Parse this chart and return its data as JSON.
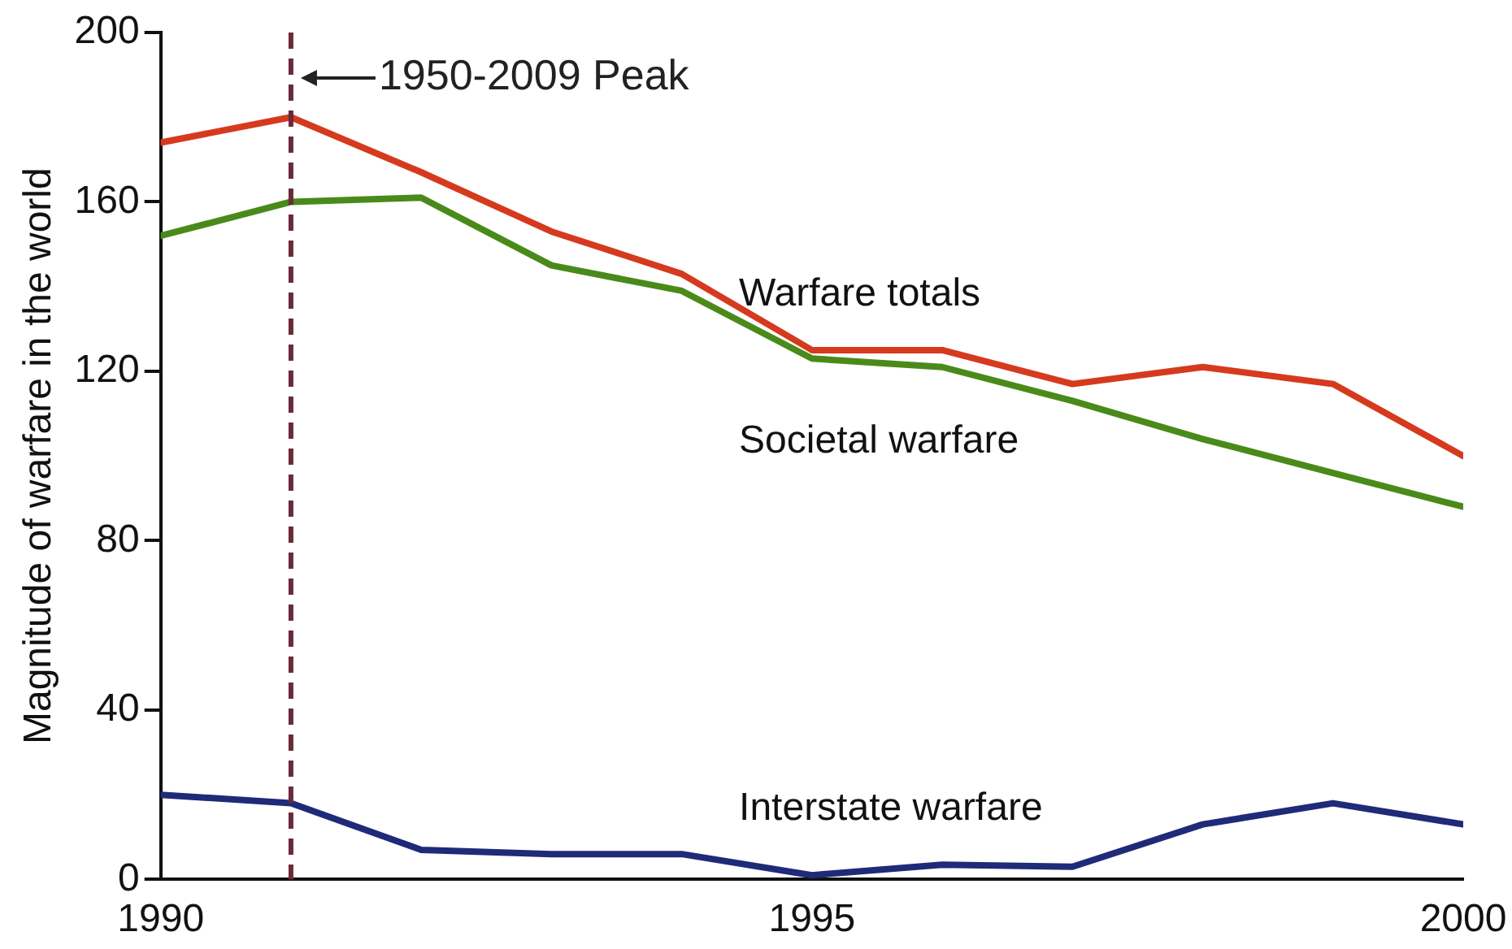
{
  "chart_data": {
    "type": "line",
    "ylabel": "Magnitude of warfare in the world",
    "x": [
      1990,
      1991,
      1992,
      1993,
      1994,
      1995,
      1996,
      1997,
      1998,
      1999,
      2000
    ],
    "series": [
      {
        "name": "Warfare totals",
        "color": "#d63a1e",
        "values": [
          174,
          180,
          167,
          153,
          143,
          125,
          125,
          117,
          121,
          117,
          100
        ]
      },
      {
        "name": "Societal warfare",
        "color": "#4a8a1a",
        "values": [
          152,
          160,
          161,
          145,
          139,
          123,
          121,
          113,
          104,
          96,
          88
        ]
      },
      {
        "name": "Interstate warfare",
        "color": "#1f2a78",
        "values": [
          20,
          18,
          7,
          6,
          6,
          1,
          3.5,
          3,
          13,
          18,
          13
        ]
      }
    ],
    "xlim": [
      1990,
      2000
    ],
    "xticks": [
      1990,
      1995,
      2000
    ],
    "ylim": [
      0,
      200
    ],
    "yticks": [
      0,
      40,
      80,
      120,
      160,
      200
    ],
    "ref_lines": [
      {
        "axis": "x",
        "value": 1991,
        "label": "1950-2009 Peak",
        "color": "#6a2a3a",
        "line_style": "dashed"
      }
    ],
    "grid": false,
    "legend": false,
    "marker": "none",
    "line_style": "solid"
  }
}
